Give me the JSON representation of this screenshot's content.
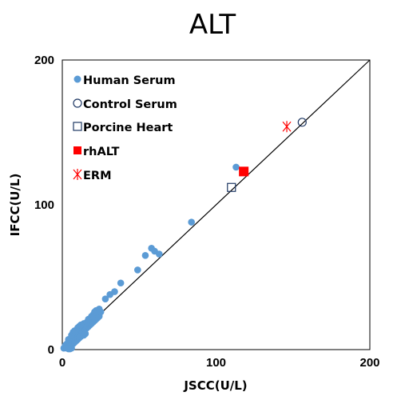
{
  "chart_data": {
    "type": "scatter",
    "title": "ALT",
    "xlabel": "JSCC(U/L)",
    "ylabel": "IFCC(U/L)",
    "xlim": [
      0,
      200
    ],
    "ylim": [
      0,
      200
    ],
    "xticks": [
      "0",
      "100",
      "200"
    ],
    "yticks": [
      "0",
      "100",
      "200"
    ],
    "grid": false,
    "legend_position": "top-left",
    "identity_line": true,
    "colors": {
      "human": "#5b9bd5",
      "control": "#1f3864",
      "porcine": "#1f3864",
      "rhalt": "#ff0000",
      "erm": "#ff0000",
      "line": "#000000"
    },
    "series": [
      {
        "name": "Human Serum",
        "marker": "filled-circle",
        "points": [
          [
            1,
            1
          ],
          [
            2,
            1.5
          ],
          [
            2,
            3
          ],
          [
            3,
            2
          ],
          [
            3,
            4
          ],
          [
            4,
            3
          ],
          [
            4,
            5
          ],
          [
            5,
            4
          ],
          [
            5,
            6
          ],
          [
            6,
            5
          ],
          [
            6,
            7
          ],
          [
            7,
            6
          ],
          [
            7,
            8
          ],
          [
            8,
            7
          ],
          [
            8,
            9
          ],
          [
            9,
            8
          ],
          [
            9,
            10
          ],
          [
            10,
            9
          ],
          [
            10,
            11
          ],
          [
            11,
            10
          ],
          [
            11,
            12
          ],
          [
            12,
            11
          ],
          [
            12,
            13
          ],
          [
            13,
            12
          ],
          [
            13,
            14
          ],
          [
            14,
            13
          ],
          [
            14,
            15
          ],
          [
            15,
            14
          ],
          [
            15,
            16
          ],
          [
            16,
            15
          ],
          [
            16,
            17
          ],
          [
            17,
            16
          ],
          [
            17,
            18
          ],
          [
            18,
            17
          ],
          [
            18,
            19
          ],
          [
            19,
            18
          ],
          [
            20,
            19
          ],
          [
            21,
            20
          ],
          [
            22,
            21
          ],
          [
            23,
            22
          ],
          [
            24,
            23
          ],
          [
            3,
            1
          ],
          [
            5,
            2
          ],
          [
            6,
            3
          ],
          [
            7,
            4
          ],
          [
            8,
            5
          ],
          [
            9,
            6
          ],
          [
            10,
            7
          ],
          [
            11,
            8
          ],
          [
            12,
            9
          ],
          [
            14,
            10
          ],
          [
            15,
            11
          ],
          [
            4,
            7
          ],
          [
            6,
            10
          ],
          [
            7,
            12
          ],
          [
            8,
            13
          ],
          [
            10,
            15
          ],
          [
            11,
            16
          ],
          [
            12,
            17
          ],
          [
            14,
            18
          ],
          [
            16,
            19
          ],
          [
            17,
            21
          ],
          [
            19,
            23
          ],
          [
            20,
            24
          ],
          [
            21,
            26
          ],
          [
            22,
            27
          ],
          [
            24,
            28
          ],
          [
            25,
            26
          ],
          [
            5,
            0.5
          ],
          [
            6,
            1
          ],
          [
            4,
            0.5
          ],
          [
            28,
            35
          ],
          [
            31,
            38
          ],
          [
            34,
            40
          ],
          [
            38,
            46
          ],
          [
            49,
            55
          ],
          [
            54,
            65
          ],
          [
            58,
            70
          ],
          [
            60,
            68
          ],
          [
            63,
            66
          ],
          [
            84,
            88
          ],
          [
            113,
            126
          ]
        ]
      },
      {
        "name": "Control Serum",
        "marker": "open-circle",
        "points": [
          [
            156,
            157
          ]
        ]
      },
      {
        "name": "Porcine Heart",
        "marker": "open-square",
        "points": [
          [
            110,
            112
          ]
        ]
      },
      {
        "name": "rhALT",
        "marker": "filled-square",
        "points": [
          [
            118,
            123
          ]
        ]
      },
      {
        "name": "ERM",
        "marker": "asterisk",
        "points": [
          [
            146,
            154
          ]
        ]
      }
    ]
  }
}
